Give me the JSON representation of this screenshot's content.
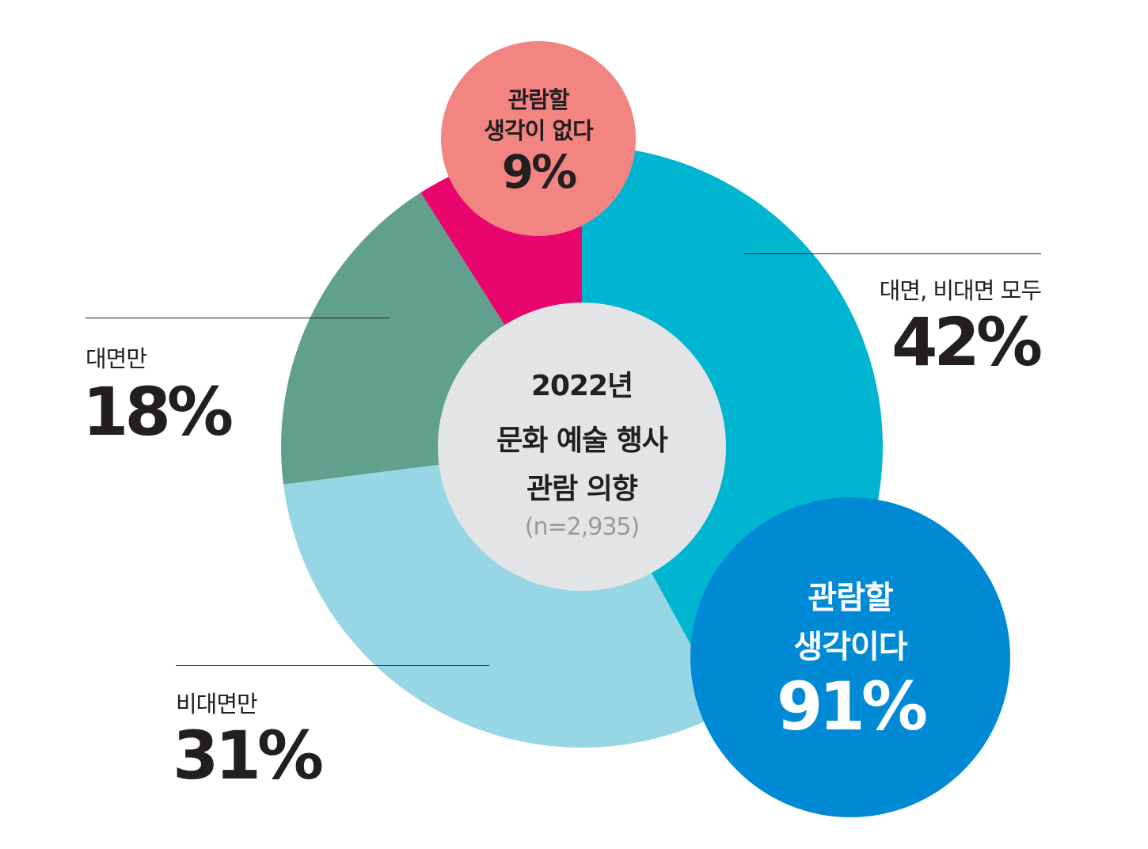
{
  "chart_data": {
    "type": "pie",
    "title": "2022년\n문화 예술 행사\n관람 의향",
    "title_lines": [
      "2022년",
      "문화 예술 행사",
      "관람 의향"
    ],
    "sample_note": "(n=2,935)",
    "slices": [
      {
        "label": "대면, 비대면 모두",
        "value": 42,
        "value_text": "42%",
        "color": "#00b5cf"
      },
      {
        "label": "비대면만",
        "value": 31,
        "value_text": "31%",
        "color": "#97d6e4"
      },
      {
        "label": "대면만",
        "value": 18,
        "value_text": "18%",
        "color": "#62a08e"
      },
      {
        "label": "관람할 생각이 없다",
        "value": 9,
        "value_text": "9%",
        "color": "#e8066e"
      }
    ],
    "summary_bubbles": [
      {
        "lines": [
          "관람할",
          "생각이다"
        ],
        "value_text": "91%",
        "color": "#008ad5"
      },
      {
        "lines": [
          "관람할",
          "생각이 없다"
        ],
        "value_text": "9%",
        "color": "#f28481"
      }
    ]
  },
  "colors": {
    "center_circle": "#e3e4e5",
    "text_dark": "#231f20",
    "text_gray": "#9a9a9a"
  }
}
